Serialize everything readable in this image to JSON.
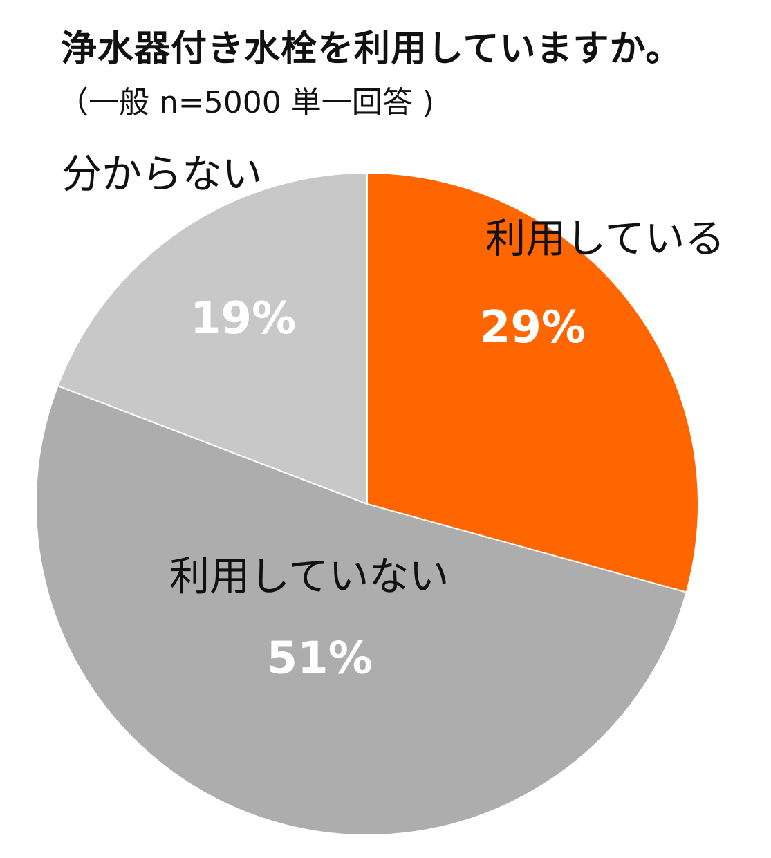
{
  "chart_data": {
    "type": "pie",
    "title": "浄水器付き水栓を利用していますか。",
    "subtitle": "（一般 n=5000 単一回答 )",
    "slices": [
      {
        "label": "利用している",
        "value": 29,
        "value_label": "29%",
        "color": "#FF6600"
      },
      {
        "label": "利用していない",
        "value": 51,
        "value_label": "51%",
        "color": "#ADADAD"
      },
      {
        "label": "分からない",
        "value": 19,
        "value_label": "19%",
        "color": "#C8C8C8"
      }
    ],
    "start": "12 o'clock",
    "direction": "clockwise",
    "legend": "none"
  }
}
